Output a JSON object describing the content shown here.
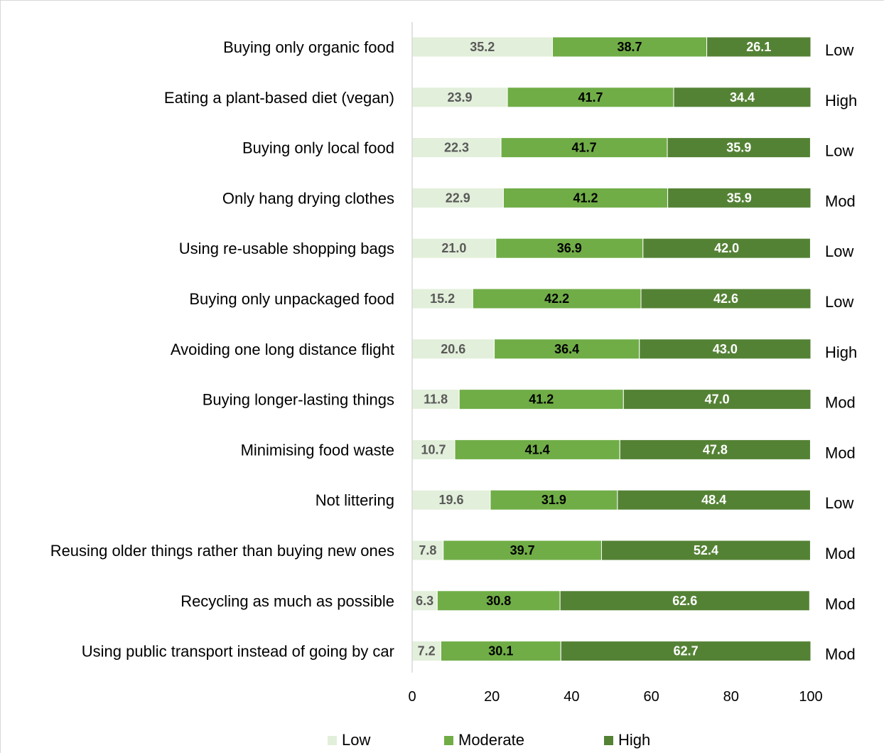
{
  "chart_data": {
    "type": "bar",
    "orientation": "horizontal",
    "stacked": true,
    "categories": [
      "Buying only organic food",
      "Eating a plant-based diet (vegan)",
      "Buying only local food",
      "Only hang drying clothes",
      "Using re-usable shopping bags",
      "Buying only unpackaged food",
      "Avoiding one long distance flight",
      "Buying longer-lasting things",
      "Minimising food waste",
      "Not littering",
      "Reusing older things rather than buying new ones",
      "Recycling as much as possible",
      "Using public transport instead of going by car"
    ],
    "series": [
      {
        "name": "Low",
        "color": "#e2efda",
        "label_color": "#595959",
        "values": [
          35.2,
          23.9,
          22.3,
          22.9,
          21.0,
          15.2,
          20.6,
          11.8,
          10.7,
          19.6,
          7.8,
          6.3,
          7.2
        ],
        "labels": [
          "35.2",
          "23.9",
          "22.3",
          "22.9",
          "21.0",
          "15.2",
          "20.6",
          "11.8",
          "10.7",
          "19.6",
          "7.8",
          "6.3",
          "7.2"
        ]
      },
      {
        "name": "Moderate",
        "color": "#70ad47",
        "label_color": "#000000",
        "values": [
          38.7,
          41.7,
          41.7,
          41.2,
          36.9,
          42.2,
          36.4,
          41.2,
          41.4,
          31.9,
          39.7,
          30.8,
          30.1
        ],
        "labels": [
          "38.7",
          "41.7",
          "41.7",
          "41.2",
          "36.9",
          "42.2",
          "36.4",
          "41.2",
          "41.4",
          "31.9",
          "39.7",
          "30.8",
          "30.1"
        ]
      },
      {
        "name": "High",
        "color": "#548235",
        "label_color": "#ffffff",
        "values": [
          26.1,
          34.4,
          35.9,
          35.9,
          42.0,
          42.6,
          43.0,
          47.0,
          47.8,
          48.4,
          52.4,
          62.6,
          62.7
        ],
        "labels": [
          "26.1",
          "34.4",
          "35.9",
          "35.9",
          "42.0",
          "42.6",
          "43.0",
          "47.0",
          "47.8",
          "48.4",
          "52.4",
          "62.6",
          "62.7"
        ]
      }
    ],
    "levels": [
      "Low",
      "High",
      "Low",
      "Mod",
      "Low",
      "Low",
      "High",
      "Mod",
      "Mod",
      "Low",
      "Mod",
      "Mod",
      "Mod"
    ],
    "xlim": [
      0,
      100
    ],
    "xticks": [
      "0",
      "20",
      "40",
      "60",
      "80",
      "100"
    ],
    "grid": false,
    "legend_position": "bottom",
    "title": "",
    "xlabel": "",
    "ylabel": ""
  }
}
